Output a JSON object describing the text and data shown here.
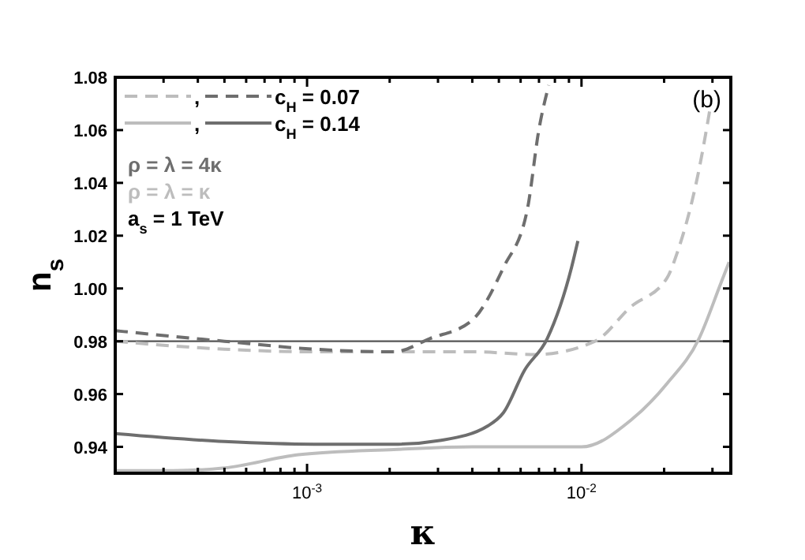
{
  "chart_data": {
    "type": "line",
    "xlabel": "κ",
    "ylabel": "n$_{s}$",
    "log": "x",
    "xlim": [
      0.0002,
      0.035
    ],
    "ylim": [
      0.93,
      1.08
    ],
    "xticks": [
      {
        "value": 0.0003,
        "label": null
      },
      {
        "value": 0.0004,
        "label": null
      },
      {
        "value": 0.0005,
        "label": null
      },
      {
        "value": 0.0006,
        "label": null
      },
      {
        "value": 0.0007,
        "label": null
      },
      {
        "value": 0.0008,
        "label": null
      },
      {
        "value": 0.0009,
        "label": null
      },
      {
        "value": 0.001,
        "label": "10$^{-3}$"
      },
      {
        "value": 0.002,
        "label": null
      },
      {
        "value": 0.003,
        "label": null
      },
      {
        "value": 0.004,
        "label": null
      },
      {
        "value": 0.005,
        "label": null
      },
      {
        "value": 0.006,
        "label": null
      },
      {
        "value": 0.007,
        "label": null
      },
      {
        "value": 0.008,
        "label": null
      },
      {
        "value": 0.009,
        "label": null
      },
      {
        "value": 0.01,
        "label": "10$^{-2}$"
      },
      {
        "value": 0.02,
        "label": null
      },
      {
        "value": 0.03,
        "label": null
      }
    ],
    "yticks": [
      {
        "value": 0.94,
        "label": "0.94"
      },
      {
        "value": 0.96,
        "label": "0.96"
      },
      {
        "value": 0.98,
        "label": "0.98"
      },
      {
        "value": 1.0,
        "label": "1.00"
      },
      {
        "value": 1.02,
        "label": "1.02"
      },
      {
        "value": 1.04,
        "label": "1.04"
      },
      {
        "value": 1.06,
        "label": "1.06"
      },
      {
        "value": 1.08,
        "label": "1.08"
      }
    ],
    "grid": false,
    "legend": "top left",
    "marker": "none",
    "series": [
      {
        "name": ",",
        "color": "#bdbdbd",
        "line_style": "dashed",
        "x": [
          0.0002,
          0.0005,
          0.00106,
          0.00207,
          0.004,
          0.00682,
          0.0112,
          0.0151,
          0.0205,
          0.0224,
          0.0268,
          0.0295
        ],
        "values": [
          0.98,
          0.977,
          0.976,
          0.976,
          0.976,
          0.975,
          0.98,
          0.993,
          1.004,
          1.014,
          1.045,
          1.069
        ]
      },
      {
        "name": "c$_{H}$ = 0.07",
        "color": "#6e6e6e",
        "line_style": "dashed",
        "x": [
          0.0002,
          0.0005,
          0.00106,
          0.00207,
          0.0028,
          0.004,
          0.0052,
          0.00635,
          0.00699,
          0.0076
        ],
        "values": [
          0.984,
          0.98,
          0.977,
          0.976,
          0.981,
          0.988,
          1.008,
          1.03,
          1.06,
          1.077
        ]
      },
      {
        "name": ",",
        "color": "#bdbdbd",
        "line_style": "solid",
        "x": [
          0.0002,
          0.000326,
          0.0005,
          0.00093,
          0.00207,
          0.004,
          0.01,
          0.0151,
          0.0205,
          0.0268,
          0.0322,
          0.0345
        ],
        "values": [
          0.931,
          0.931,
          0.932,
          0.937,
          0.939,
          0.94,
          0.94,
          0.95,
          0.964,
          0.981,
          1.002,
          1.01
        ]
      },
      {
        "name": "c$_{H}$ = 0.14",
        "color": "#6e6e6e",
        "line_style": "solid",
        "x": [
          0.0002,
          0.0005,
          0.00106,
          0.00207,
          0.00308,
          0.00457,
          0.0052,
          0.0062,
          0.0075,
          0.0092,
          0.0097
        ],
        "values": [
          0.945,
          0.942,
          0.941,
          0.941,
          0.9425,
          0.948,
          0.953,
          0.969,
          0.981,
          1.008,
          1.018
        ]
      }
    ],
    "ref_lines": [
      {
        "axis": "y",
        "value": 0.98,
        "label": null,
        "color": "#555555",
        "line_style": "solid"
      }
    ],
    "annotations": [
      "ρ = λ = 4κ",
      "ρ = λ = κ",
      "a$_{s}$ = 1 TeV",
      "(b)"
    ]
  }
}
